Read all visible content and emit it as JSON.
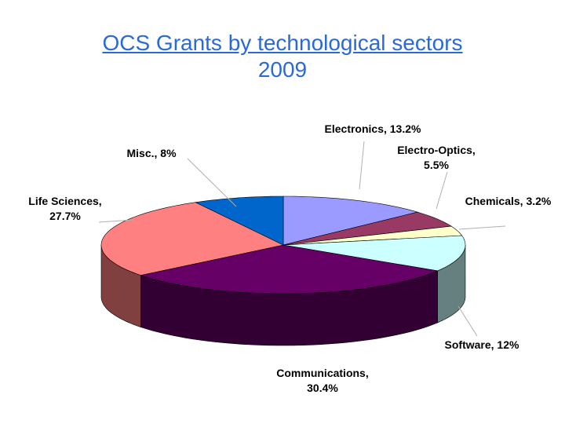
{
  "chart_data": {
    "type": "pie",
    "title_line1": "OCS Grants by technological sectors",
    "title_line2": "2009",
    "slices": [
      {
        "name": "Electronics",
        "value": 13.2,
        "label": "Electronics, 13.2%",
        "color": "#9a9aff"
      },
      {
        "name": "Electro-Optics",
        "value": 5.5,
        "label_lines": [
          "Electro-Optics,",
          "5.5%"
        ],
        "color": "#983a64"
      },
      {
        "name": "Chemicals",
        "value": 3.2,
        "label": "Chemicals, 3.2%",
        "color": "#ffffcc"
      },
      {
        "name": "Software",
        "value": 12,
        "label": "Software, 12%",
        "color": "#ccffff"
      },
      {
        "name": "Communications",
        "value": 30.4,
        "label_lines": [
          "Communications,",
          "30.4%"
        ],
        "color": "#660066"
      },
      {
        "name": "Life Sciences",
        "value": 27.7,
        "label_lines": [
          "Life Sciences,",
          "27.7%"
        ],
        "color": "#ff8080"
      },
      {
        "name": "Misc.",
        "value": 8,
        "label": "Misc., 8%",
        "color": "#0066cc"
      }
    ],
    "legend": "none"
  }
}
